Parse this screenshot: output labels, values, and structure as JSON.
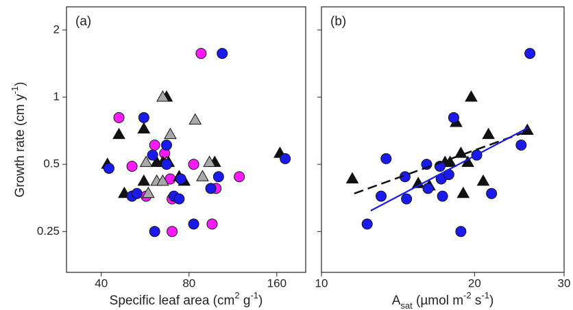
{
  "chart_data": [
    {
      "type": "scatter",
      "annotation": "(a)",
      "xlabel": [
        {
          "text": "Specific leaf area (cm"
        },
        {
          "text": "2",
          "shift": "super"
        },
        {
          "text": " g"
        },
        {
          "text": "-1",
          "shift": "super"
        },
        {
          "text": ")"
        }
      ],
      "ylabel": [
        {
          "text": "Growth rate (cm y"
        },
        {
          "text": "-1",
          "shift": "super"
        },
        {
          "text": ")"
        }
      ],
      "xscale": "log",
      "yscale": "log",
      "xlim": [
        30.4,
        201
      ],
      "xticks": [
        40,
        80,
        160
      ],
      "ylim": [
        0.164,
        2.54
      ],
      "yticks": [
        0.25,
        0.5,
        1,
        2
      ],
      "ytick_labels": true,
      "series": [
        {
          "marker": "circle",
          "color": "#ff1aff",
          "x": [
            46,
            61,
            51,
            57,
            66,
            69,
            70,
            70,
            83,
            88,
            96,
            99,
            119
          ],
          "values": [
            0.81,
            0.61,
            0.49,
            0.36,
            0.56,
            0.43,
            0.35,
            0.25,
            0.5,
            1.57,
            0.27,
            0.39,
            0.44
          ]
        },
        {
          "marker": "triangle",
          "color": "#111111",
          "x": [
            42,
            46,
            48,
            56,
            56,
            62,
            65,
            67,
            68,
            74,
            77,
            98,
            164
          ],
          "values": [
            0.5,
            0.68,
            0.37,
            0.72,
            0.42,
            0.51,
            0.51,
            1.0,
            0.51,
            0.44,
            0.42,
            0.51,
            0.56
          ]
        },
        {
          "marker": "triangle",
          "color": "#a9a9a9",
          "x": [
            65,
            69,
            57,
            58,
            62,
            65,
            67,
            84,
            89,
            94
          ],
          "values": [
            1.0,
            0.68,
            0.51,
            0.37,
            0.42,
            0.42,
            0.51,
            0.79,
            0.44,
            0.51
          ]
        },
        {
          "marker": "circle",
          "color": "#1a1aee",
          "x": [
            42.5,
            51,
            53,
            56,
            60,
            61,
            67,
            67,
            71,
            74,
            75,
            83,
            95,
            101,
            104,
            171
          ],
          "values": [
            0.48,
            0.36,
            0.37,
            0.81,
            0.55,
            0.25,
            0.61,
            0.5,
            0.36,
            0.35,
            0.43,
            0.27,
            0.39,
            0.44,
            1.57,
            0.53
          ]
        }
      ]
    },
    {
      "type": "scatter",
      "annotation": "(b)",
      "xlabel": [
        {
          "text": "A"
        },
        {
          "text": "sat",
          "shift": "sub"
        },
        {
          "text": " (µmol m"
        },
        {
          "text": "-2",
          "shift": "super"
        },
        {
          "text": " s"
        },
        {
          "text": "-1",
          "shift": "super"
        },
        {
          "text": ")"
        }
      ],
      "xscale": "log",
      "yscale": "log",
      "xlim": [
        10,
        30
      ],
      "xticks": [
        10,
        20,
        30
      ],
      "ylim": [
        0.164,
        2.54
      ],
      "yticks": [
        0.25,
        0.5,
        1,
        2
      ],
      "ytick_labels": false,
      "series": [
        {
          "marker": "triangle",
          "color": "#111111",
          "x": [
            11.5,
            15.5,
            16.3,
            17.5,
            17.9,
            18.4,
            18.8,
            19.0,
            19.4,
            19.7,
            20.8,
            21.3,
            25.4
          ],
          "values": [
            0.43,
            0.41,
            0.4,
            0.51,
            0.51,
            0.77,
            0.56,
            0.37,
            0.51,
            1.0,
            0.42,
            0.68,
            0.71
          ]
        },
        {
          "marker": "circle",
          "color": "#1a1aee",
          "x": [
            12.3,
            13.1,
            13.4,
            14.6,
            14.7,
            16.1,
            16.2,
            17.1,
            17.2,
            17.8,
            17.3,
            18.2,
            18.8,
            20.2,
            21.6,
            24.7,
            25.7
          ],
          "values": [
            0.27,
            0.36,
            0.53,
            0.44,
            0.35,
            0.5,
            0.39,
            0.49,
            0.43,
            0.45,
            0.36,
            0.81,
            0.25,
            0.55,
            0.37,
            0.61,
            1.57
          ]
        },
        {
          "marker": "none",
          "line": "dashed",
          "color": "#111111",
          "x": [
            11.6,
            25.7
          ],
          "values": [
            0.37,
            0.71
          ]
        },
        {
          "marker": "none",
          "line": "solid",
          "color": "#1a1aee",
          "x": [
            12.5,
            25.5
          ],
          "values": [
            0.31,
            0.73
          ]
        }
      ]
    }
  ]
}
